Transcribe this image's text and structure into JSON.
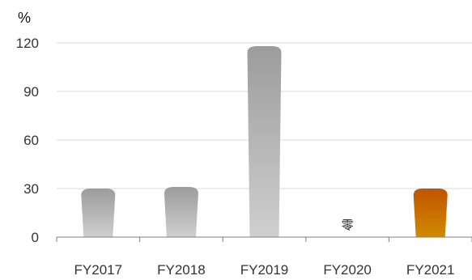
{
  "chart_data": {
    "type": "bar",
    "title": "",
    "xlabel": "",
    "ylabel": "%",
    "ylim": [
      0,
      120
    ],
    "yticks": [
      0,
      30,
      60,
      90,
      120
    ],
    "grid": true,
    "categories": [
      "FY2017",
      "FY2018",
      "FY2019",
      "FY2020",
      "FY2021"
    ],
    "values": [
      30,
      31,
      118,
      0,
      30
    ],
    "value_labels": [
      "",
      "",
      "",
      "零",
      ""
    ],
    "colors": {
      "default_top": "#9c9c9c",
      "default_bottom": "#cfcfcf",
      "highlight_top": "#c25400",
      "highlight_bottom": "#d08a00",
      "highlight_category": "FY2021",
      "grid": "#d9d9d9",
      "axis": "#7f7f7f"
    }
  }
}
